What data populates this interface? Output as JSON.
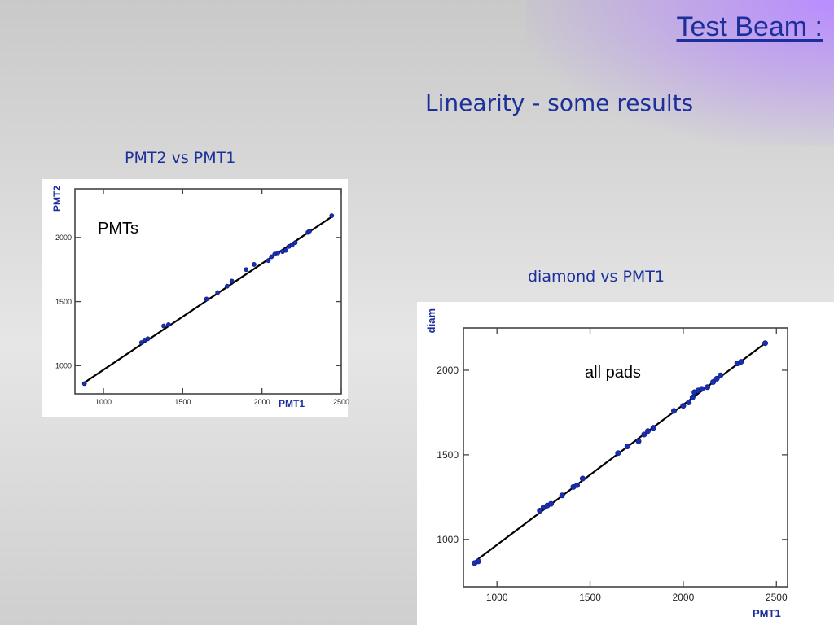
{
  "slide": {
    "title": "Test Beam :",
    "subtitle": "Linearity - some results"
  },
  "captions": {
    "left": "PMT2 vs PMT1",
    "right": "diamond vs PMT1"
  },
  "chart_data": [
    {
      "type": "scatter",
      "caption": "PMT2 vs PMT1",
      "annotation": "PMTs",
      "xlabel": "PMT1",
      "ylabel": "PMT2",
      "xlim": [
        820,
        2500
      ],
      "ylim": [
        780,
        2380
      ],
      "xticks": [
        1000,
        1500,
        2000,
        2500
      ],
      "yticks": [
        1000,
        1500,
        2000
      ],
      "fit_line": {
        "x": [
          870,
          2450
        ],
        "y": [
          860,
          2170
        ]
      },
      "series": [
        {
          "color": "#1a2fb0",
          "points": [
            [
              880,
              860
            ],
            [
              1240,
              1180
            ],
            [
              1260,
              1200
            ],
            [
              1280,
              1210
            ],
            [
              1380,
              1310
            ],
            [
              1410,
              1320
            ],
            [
              1650,
              1520
            ],
            [
              1720,
              1570
            ],
            [
              1780,
              1620
            ],
            [
              1810,
              1660
            ],
            [
              1900,
              1750
            ],
            [
              1950,
              1790
            ],
            [
              2040,
              1820
            ],
            [
              2060,
              1850
            ],
            [
              2080,
              1870
            ],
            [
              2100,
              1880
            ],
            [
              2130,
              1890
            ],
            [
              2150,
              1900
            ],
            [
              2170,
              1930
            ],
            [
              2190,
              1940
            ],
            [
              2210,
              1960
            ],
            [
              2290,
              2040
            ],
            [
              2300,
              2050
            ],
            [
              2440,
              2170
            ]
          ]
        }
      ]
    },
    {
      "type": "scatter",
      "caption": "diamond vs PMT1",
      "annotation": "all pads",
      "xlabel": "PMT1",
      "ylabel": "diam",
      "xlim": [
        820,
        2560
      ],
      "ylim": [
        720,
        2250
      ],
      "xticks": [
        1000,
        1500,
        2000,
        2500
      ],
      "yticks": [
        1000,
        1500,
        2000
      ],
      "fit_line": {
        "x": [
          870,
          2440
        ],
        "y": [
          860,
          2160
        ]
      },
      "series": [
        {
          "color": "#1a2fb0",
          "points": [
            [
              880,
              860
            ],
            [
              900,
              870
            ],
            [
              1230,
              1170
            ],
            [
              1250,
              1190
            ],
            [
              1270,
              1200
            ],
            [
              1290,
              1210
            ],
            [
              1350,
              1260
            ],
            [
              1410,
              1310
            ],
            [
              1430,
              1320
            ],
            [
              1460,
              1360
            ],
            [
              1650,
              1510
            ],
            [
              1700,
              1550
            ],
            [
              1760,
              1580
            ],
            [
              1790,
              1620
            ],
            [
              1810,
              1640
            ],
            [
              1840,
              1660
            ],
            [
              1950,
              1760
            ],
            [
              2000,
              1790
            ],
            [
              2030,
              1810
            ],
            [
              2050,
              1840
            ],
            [
              2060,
              1870
            ],
            [
              2080,
              1880
            ],
            [
              2100,
              1890
            ],
            [
              2130,
              1900
            ],
            [
              2160,
              1930
            ],
            [
              2180,
              1950
            ],
            [
              2200,
              1970
            ],
            [
              2290,
              2040
            ],
            [
              2310,
              2050
            ],
            [
              2440,
              2160
            ]
          ]
        }
      ]
    }
  ]
}
